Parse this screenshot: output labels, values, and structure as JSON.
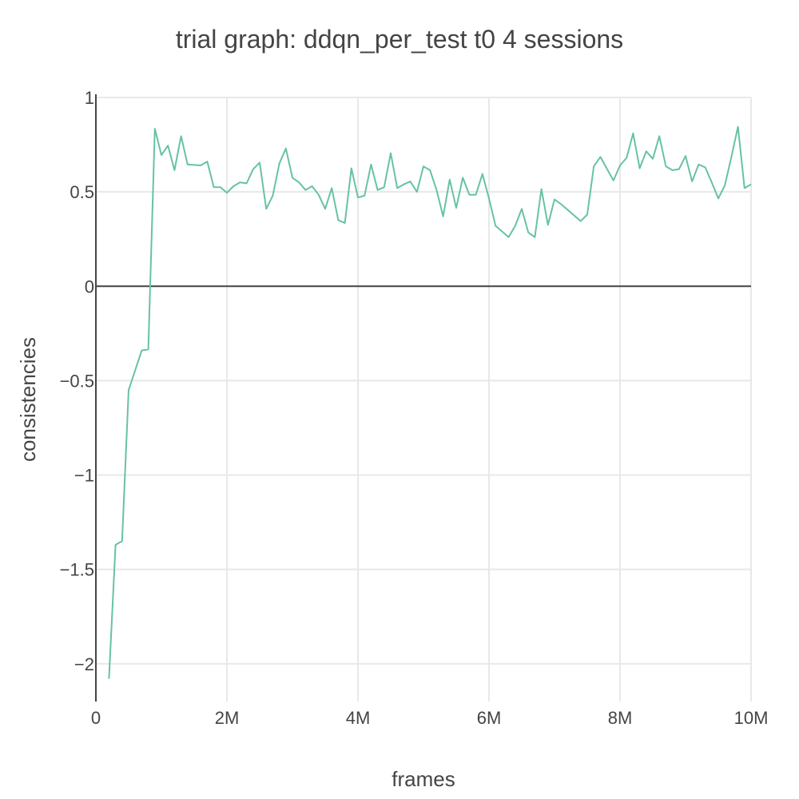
{
  "chart_data": {
    "type": "line",
    "title": "trial graph: ddqn_per_test t0 4 sessions",
    "xlabel": "frames",
    "ylabel": "consistencies",
    "xlim": [
      0,
      10000000
    ],
    "ylim": [
      -2.2,
      1
    ],
    "grid": true,
    "legend": "none",
    "x_ticks": [
      {
        "value": 0,
        "label": "0"
      },
      {
        "value": 2000000,
        "label": "2M"
      },
      {
        "value": 4000000,
        "label": "4M"
      },
      {
        "value": 6000000,
        "label": "6M"
      },
      {
        "value": 8000000,
        "label": "8M"
      },
      {
        "value": 10000000,
        "label": "10M"
      }
    ],
    "y_ticks": [
      {
        "value": 1,
        "label": "1"
      },
      {
        "value": 0.5,
        "label": "0.5"
      },
      {
        "value": 0,
        "label": "0"
      },
      {
        "value": -0.5,
        "label": "−0.5"
      },
      {
        "value": -1,
        "label": "−1"
      },
      {
        "value": -1.5,
        "label": "−1.5"
      },
      {
        "value": -2,
        "label": "−2"
      }
    ],
    "series": [
      {
        "color": "#66c2a5",
        "x": [
          200000,
          300000,
          400000,
          500000,
          700000,
          800000,
          900000,
          1000000,
          1100000,
          1200000,
          1300000,
          1400000,
          1600000,
          1700000,
          1800000,
          1900000,
          2000000,
          2100000,
          2200000,
          2300000,
          2400000,
          2500000,
          2600000,
          2700000,
          2800000,
          2900000,
          3000000,
          3100000,
          3200000,
          3300000,
          3400000,
          3500000,
          3600000,
          3700000,
          3800000,
          3900000,
          4000000,
          4100000,
          4200000,
          4300000,
          4400000,
          4500000,
          4600000,
          4700000,
          4800000,
          4900000,
          5000000,
          5100000,
          5200000,
          5300000,
          5400000,
          5500000,
          5600000,
          5700000,
          5800000,
          5900000,
          6000000,
          6100000,
          6300000,
          6400000,
          6500000,
          6600000,
          6700000,
          6800000,
          6900000,
          7000000,
          7100000,
          7400000,
          7500000,
          7600000,
          7700000,
          7900000,
          8000000,
          8100000,
          8200000,
          8300000,
          8400000,
          8500000,
          8600000,
          8700000,
          8800000,
          8900000,
          9000000,
          9100000,
          9200000,
          9300000,
          9400000,
          9500000,
          9600000,
          9700000,
          9800000,
          9900000,
          10000000
        ],
        "y": [
          -2.08,
          -1.37,
          -1.35,
          -0.55,
          -0.34,
          -0.335,
          0.835,
          0.695,
          0.745,
          0.615,
          0.795,
          0.645,
          0.64,
          0.66,
          0.525,
          0.525,
          0.495,
          0.53,
          0.55,
          0.545,
          0.62,
          0.655,
          0.41,
          0.48,
          0.65,
          0.73,
          0.575,
          0.55,
          0.51,
          0.53,
          0.485,
          0.41,
          0.52,
          0.35,
          0.335,
          0.625,
          0.47,
          0.48,
          0.645,
          0.51,
          0.525,
          0.705,
          0.52,
          0.54,
          0.555,
          0.5,
          0.635,
          0.615,
          0.51,
          0.37,
          0.565,
          0.415,
          0.575,
          0.485,
          0.485,
          0.595,
          0.465,
          0.32,
          0.26,
          0.32,
          0.41,
          0.285,
          0.26,
          0.515,
          0.325,
          0.46,
          0.435,
          0.345,
          0.38,
          0.635,
          0.685,
          0.56,
          0.64,
          0.68,
          0.81,
          0.625,
          0.715,
          0.675,
          0.795,
          0.635,
          0.615,
          0.62,
          0.69,
          0.555,
          0.645,
          0.63,
          0.55,
          0.465,
          0.535,
          0.685,
          0.845,
          0.52,
          0.54
        ]
      }
    ]
  }
}
